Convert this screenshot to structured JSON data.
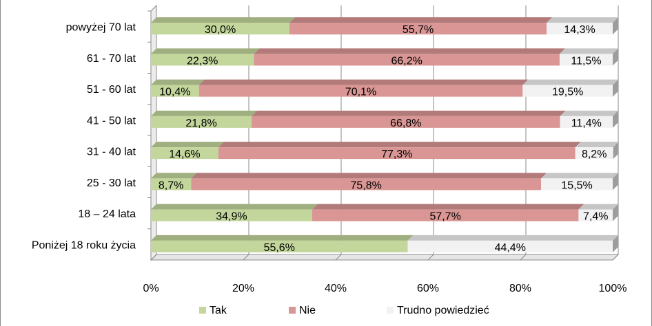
{
  "chart_data": {
    "type": "bar",
    "orientation": "horizontal",
    "stacked": "percent",
    "categories": [
      "powyżej 70 lat",
      "61 - 70 lat",
      "51 - 60 lat",
      "41 - 50 lat",
      "31 - 40 lat",
      "25 - 30 lat",
      "18 – 24 lata",
      "Poniżej 18 roku życia"
    ],
    "series": [
      {
        "name": "Tak",
        "color": "#c3d69b",
        "values": [
          30.0,
          22.3,
          10.4,
          21.8,
          14.6,
          8.7,
          34.9,
          55.6
        ],
        "labels": [
          "30,0%",
          "22,3%",
          "10,4%",
          "21,8%",
          "14,6%",
          "8,7%",
          "34,9%",
          "55,6%"
        ]
      },
      {
        "name": "Nie",
        "color": "#d99694",
        "values": [
          55.7,
          66.2,
          70.1,
          66.8,
          77.3,
          75.8,
          57.7,
          0
        ],
        "labels": [
          "55,7%",
          "66,2%",
          "70,1%",
          "66,8%",
          "77,3%",
          "75,8%",
          "57,7%",
          ""
        ]
      },
      {
        "name": "Trudno powiedzieć",
        "color": "#f2f2f2",
        "values": [
          14.3,
          11.5,
          19.5,
          11.4,
          8.2,
          15.5,
          7.4,
          44.4
        ],
        "labels": [
          "14,3%",
          "11,5%",
          "19,5%",
          "11,4%",
          "8,2%",
          "15,5%",
          "7,4%",
          "44,4%"
        ]
      }
    ],
    "x_ticks": [
      "0%",
      "20%",
      "40%",
      "60%",
      "80%",
      "100%"
    ],
    "xlim": [
      0,
      100
    ],
    "grid": true,
    "legend": "bottom"
  }
}
